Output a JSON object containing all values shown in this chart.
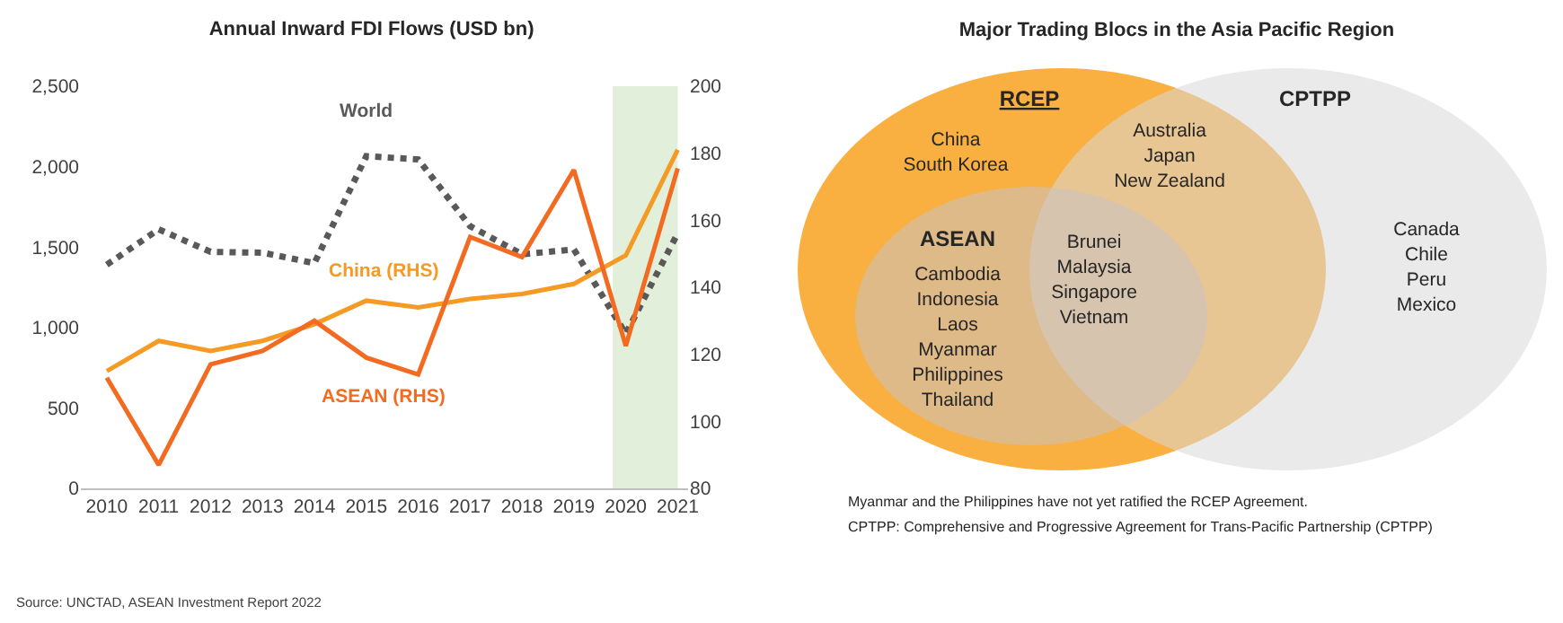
{
  "chart_data": [
    {
      "type": "line",
      "title": "Annual Inward FDI Flows (USD bn)",
      "x": [
        2010,
        2011,
        2012,
        2013,
        2014,
        2015,
        2016,
        2017,
        2018,
        2019,
        2020,
        2021
      ],
      "series": [
        {
          "name": "World",
          "color": "#595959",
          "line_style": "dotted",
          "values": [
            1390,
            1610,
            1470,
            1465,
            1400,
            2065,
            2045,
            1630,
            1455,
            1485,
            960,
            1585
          ]
        },
        {
          "name": "China (RHS)",
          "color": "#f59a23",
          "axis": "y2",
          "line_style": "solid",
          "values": [
            115,
            124,
            121,
            124,
            129,
            136,
            134,
            136.5,
            138,
            141,
            149.5,
            181
          ]
        },
        {
          "name": "ASEAN (RHS)",
          "color": "#f26b21",
          "axis": "y2",
          "line_style": "solid",
          "values": [
            113,
            87,
            117,
            121,
            130,
            119,
            114,
            155,
            149,
            175,
            122.5,
            175.5
          ]
        }
      ],
      "xlim": [
        2009.5,
        2021.2
      ],
      "xticks": [
        2010,
        2011,
        2012,
        2013,
        2014,
        2015,
        2016,
        2017,
        2018,
        2019,
        2020,
        2021
      ],
      "ylim": [
        0,
        2500
      ],
      "yticks": [
        0,
        500,
        {
          "value": 1000,
          "label": "1,000"
        },
        {
          "value": 1500,
          "label": "1,500"
        },
        {
          "value": 2000,
          "label": "2,000"
        },
        {
          "value": 2500,
          "label": "2,500"
        }
      ],
      "y2lim": [
        80,
        200
      ],
      "y2ticks": [
        80,
        100,
        120,
        140,
        160,
        180,
        200
      ],
      "bands": [
        {
          "axis": "x",
          "from": 2019.75,
          "to": 2021,
          "color": "#e2efda"
        }
      ],
      "grid": false,
      "legend": false,
      "marker": "none",
      "annotations": [
        "Source: UNCTAD, ASEAN Investment Report 2022"
      ]
    },
    {
      "type": "other",
      "title": "Major Trading Blocs in the Asia Pacific Region",
      "annotations": [
        "RCEP",
        "CPTPP",
        "ASEAN",
        "China\nSouth Korea",
        "Australia\nJapan\nNew Zealand",
        "Cambodia\nIndonesia\nLaos\nMyanmar\nPhilippines\nThailand",
        "Brunei\nMalaysia\nSingapore\nVietnam",
        "Canada\nChile\nPeru\nMexico",
        "Myanmar and the Philippines have not yet ratified the RCEP Agreement.",
        "CPTPP: Comprehensive and Progressive Agreement for Trans-Pacific Partnership (CPTPP)"
      ]
    }
  ]
}
